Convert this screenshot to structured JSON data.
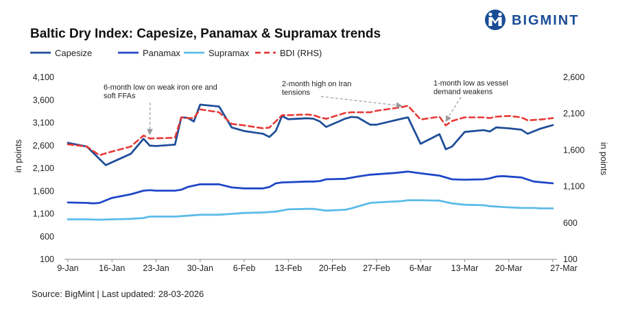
{
  "brand": {
    "name": "BIGMINT",
    "color": "#1a4c96"
  },
  "source": "Source: BigMint | Last updated: 28-03-2026",
  "chart_data": {
    "type": "line",
    "title": "Baltic Dry Index: Capesize, Panamax & Supramax trends",
    "ylabel_left": "in points",
    "ylabel_right": "in points",
    "ylim_left": [
      100,
      4100
    ],
    "ylim_right": [
      100,
      2600
    ],
    "yticks_left": [
      "4,100",
      "3,600",
      "3,100",
      "2,600",
      "2,100",
      "1,600",
      "1,100",
      "600",
      "100"
    ],
    "yticks_right": [
      "2,600",
      "2,100",
      "1,600",
      "1,100",
      "600",
      "100"
    ],
    "xlim": [
      0,
      77
    ],
    "x_tick_labels": [
      {
        "x": 0,
        "label": "9-Jan"
      },
      {
        "x": 7,
        "label": "16-Jan"
      },
      {
        "x": 14,
        "label": "23-Jan"
      },
      {
        "x": 21,
        "label": "30-Jan"
      },
      {
        "x": 28,
        "label": "6-Feb"
      },
      {
        "x": 35,
        "label": "13-Feb"
      },
      {
        "x": 42,
        "label": "20-Feb"
      },
      {
        "x": 49,
        "label": "27-Feb"
      },
      {
        "x": 56,
        "label": "6-Mar"
      },
      {
        "x": 63,
        "label": "13-Mar"
      },
      {
        "x": 70,
        "label": "20-Mar"
      },
      {
        "x": 77,
        "label": "27-Mar"
      }
    ],
    "grid": false,
    "legend_position": "top-left",
    "series": [
      {
        "name": "Capesize",
        "axis": "left",
        "color": "#1f4e99",
        "dash": false,
        "points": [
          [
            0,
            2660
          ],
          [
            3,
            2580
          ],
          [
            6,
            2170
          ],
          [
            10,
            2420
          ],
          [
            12,
            2750
          ],
          [
            13,
            2600
          ],
          [
            14,
            2590
          ],
          [
            17,
            2620
          ],
          [
            18,
            3220
          ],
          [
            19,
            3210
          ],
          [
            20,
            3130
          ],
          [
            21,
            3500
          ],
          [
            24,
            3460
          ],
          [
            26,
            3000
          ],
          [
            28,
            2920
          ],
          [
            31,
            2860
          ],
          [
            32,
            2790
          ],
          [
            33,
            2920
          ],
          [
            34,
            3250
          ],
          [
            35,
            3180
          ],
          [
            38,
            3200
          ],
          [
            39,
            3190
          ],
          [
            40,
            3130
          ],
          [
            41,
            3010
          ],
          [
            44,
            3190
          ],
          [
            45,
            3230
          ],
          [
            46,
            3220
          ],
          [
            48,
            3060
          ],
          [
            49,
            3060
          ],
          [
            53,
            3190
          ],
          [
            54,
            3220
          ],
          [
            56,
            2640
          ],
          [
            59,
            2850
          ],
          [
            60,
            2520
          ],
          [
            61,
            2580
          ],
          [
            63,
            2900
          ],
          [
            66,
            2940
          ],
          [
            67,
            2910
          ],
          [
            68,
            3000
          ],
          [
            70,
            2980
          ],
          [
            72,
            2950
          ],
          [
            73,
            2860
          ],
          [
            75,
            2970
          ],
          [
            77,
            3050
          ]
        ]
      },
      {
        "name": "Panamax",
        "axis": "left",
        "color": "#1f46c8",
        "dash": false,
        "points": [
          [
            0,
            1350
          ],
          [
            3,
            1340
          ],
          [
            4,
            1330
          ],
          [
            5,
            1340
          ],
          [
            7,
            1450
          ],
          [
            10,
            1530
          ],
          [
            12,
            1610
          ],
          [
            13,
            1620
          ],
          [
            14,
            1610
          ],
          [
            17,
            1610
          ],
          [
            18,
            1630
          ],
          [
            19,
            1690
          ],
          [
            21,
            1750
          ],
          [
            24,
            1750
          ],
          [
            26,
            1680
          ],
          [
            28,
            1660
          ],
          [
            31,
            1660
          ],
          [
            32,
            1690
          ],
          [
            33,
            1770
          ],
          [
            34,
            1790
          ],
          [
            38,
            1810
          ],
          [
            39,
            1810
          ],
          [
            40,
            1820
          ],
          [
            41,
            1860
          ],
          [
            44,
            1870
          ],
          [
            46,
            1920
          ],
          [
            48,
            1960
          ],
          [
            52,
            2000
          ],
          [
            54,
            2030
          ],
          [
            56,
            1990
          ],
          [
            59,
            1940
          ],
          [
            61,
            1860
          ],
          [
            63,
            1850
          ],
          [
            66,
            1860
          ],
          [
            67,
            1880
          ],
          [
            68,
            1920
          ],
          [
            69,
            1930
          ],
          [
            72,
            1900
          ],
          [
            74,
            1810
          ],
          [
            77,
            1770
          ]
        ]
      },
      {
        "name": "Supramax",
        "axis": "left",
        "color": "#5bbbe8",
        "dash": false,
        "points": [
          [
            0,
            980
          ],
          [
            3,
            980
          ],
          [
            5,
            970
          ],
          [
            7,
            980
          ],
          [
            10,
            990
          ],
          [
            12,
            1010
          ],
          [
            13,
            1040
          ],
          [
            14,
            1040
          ],
          [
            17,
            1040
          ],
          [
            19,
            1060
          ],
          [
            21,
            1080
          ],
          [
            24,
            1080
          ],
          [
            26,
            1100
          ],
          [
            28,
            1120
          ],
          [
            31,
            1130
          ],
          [
            33,
            1150
          ],
          [
            35,
            1200
          ],
          [
            38,
            1210
          ],
          [
            39,
            1210
          ],
          [
            41,
            1170
          ],
          [
            44,
            1190
          ],
          [
            45,
            1220
          ],
          [
            48,
            1340
          ],
          [
            49,
            1350
          ],
          [
            53,
            1380
          ],
          [
            54,
            1400
          ],
          [
            56,
            1400
          ],
          [
            59,
            1390
          ],
          [
            61,
            1330
          ],
          [
            63,
            1300
          ],
          [
            66,
            1290
          ],
          [
            67,
            1270
          ],
          [
            69,
            1250
          ],
          [
            72,
            1230
          ],
          [
            74,
            1230
          ],
          [
            75,
            1220
          ],
          [
            77,
            1220
          ]
        ]
      },
      {
        "name": "BDI (RHS)",
        "axis": "right",
        "color": "#e53935",
        "dash": true,
        "points": [
          [
            0,
            1680
          ],
          [
            3,
            1650
          ],
          [
            5,
            1530
          ],
          [
            7,
            1580
          ],
          [
            10,
            1650
          ],
          [
            12,
            1800
          ],
          [
            13,
            1760
          ],
          [
            17,
            1770
          ],
          [
            18,
            2050
          ],
          [
            19,
            2040
          ],
          [
            20,
            2040
          ],
          [
            21,
            2160
          ],
          [
            24,
            2120
          ],
          [
            26,
            1960
          ],
          [
            28,
            1940
          ],
          [
            31,
            1900
          ],
          [
            32,
            1910
          ],
          [
            34,
            2080
          ],
          [
            35,
            2080
          ],
          [
            38,
            2090
          ],
          [
            39,
            2080
          ],
          [
            40,
            2050
          ],
          [
            41,
            2030
          ],
          [
            44,
            2110
          ],
          [
            45,
            2120
          ],
          [
            46,
            2120
          ],
          [
            48,
            2120
          ],
          [
            49,
            2140
          ],
          [
            53,
            2190
          ],
          [
            54,
            2210
          ],
          [
            56,
            2020
          ],
          [
            59,
            2060
          ],
          [
            60,
            1940
          ],
          [
            61,
            2000
          ],
          [
            63,
            2050
          ],
          [
            66,
            2050
          ],
          [
            67,
            2040
          ],
          [
            68,
            2060
          ],
          [
            70,
            2070
          ],
          [
            72,
            2050
          ],
          [
            73,
            2010
          ],
          [
            75,
            2020
          ],
          [
            77,
            2040
          ]
        ]
      }
    ],
    "annotations": [
      {
        "lines": [
          "6-month low on weak iron ore and",
          "soft FFAs"
        ],
        "target_x": 13,
        "target_value": 1760,
        "target_axis": "right"
      },
      {
        "lines": [
          "2-month high on Iran",
          "tensions"
        ],
        "target_x": 53,
        "target_value": 2190,
        "target_axis": "right"
      },
      {
        "lines": [
          "1-month low as vessel",
          "demand weakens"
        ],
        "target_x": 60,
        "target_value": 1940,
        "target_axis": "right"
      }
    ]
  }
}
